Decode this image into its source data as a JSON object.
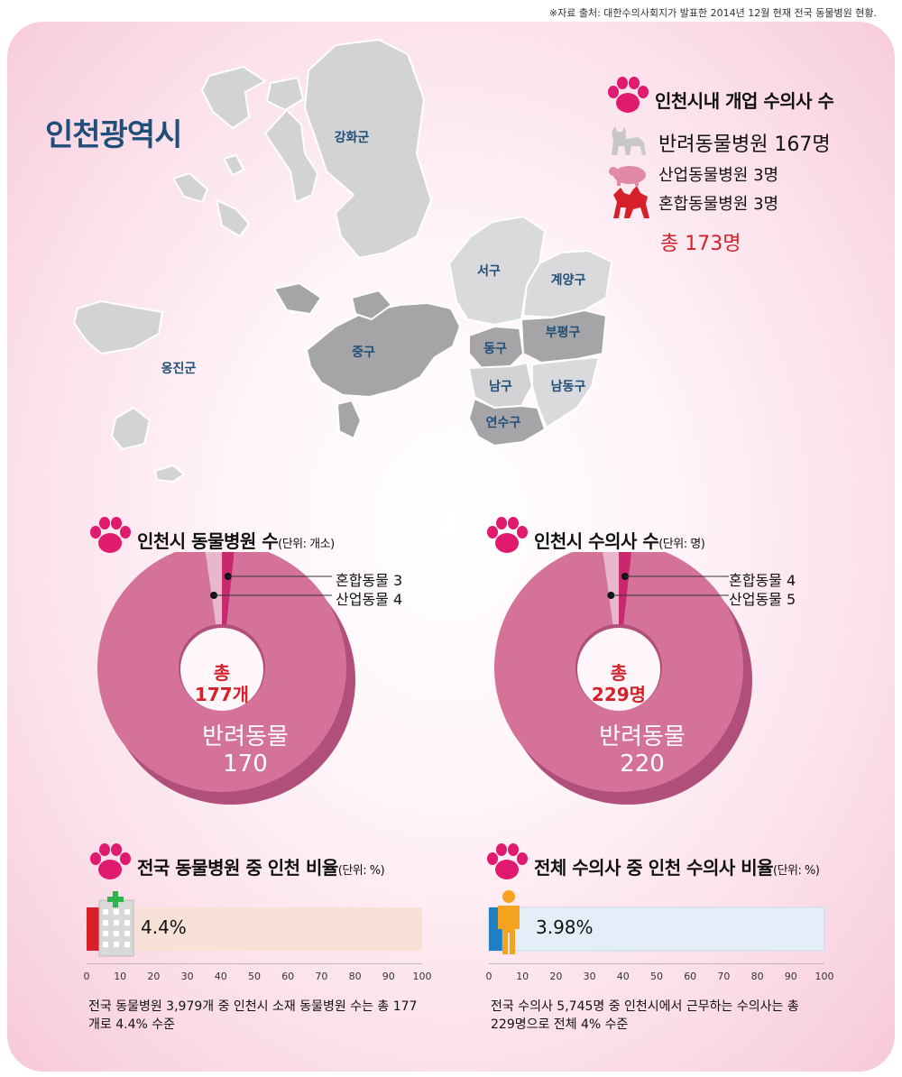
{
  "source_note": "※자료 출처: 대한수의사회지가 발표한 2014년 12월 현재 전국 동물병원 현황.",
  "map": {
    "title": "인천광역시",
    "regions": [
      "강화군",
      "옹진군",
      "서구",
      "계양구",
      "부평구",
      "중구",
      "동구",
      "남구",
      "남동구",
      "연수구"
    ]
  },
  "vets": {
    "heading": "인천시내 개업 수의사 수",
    "lines": [
      "반려동물병원 167명",
      "산업동물병원 3명",
      "혼합동물병원 3명"
    ],
    "total": "총 173명",
    "icons": [
      "cat-icon",
      "pig-icon",
      "dog-and-cat-icon"
    ]
  },
  "colors": {
    "pink_main": "#d4729a",
    "pink_dark": "#b0507a",
    "magenta": "#c8286e",
    "light_pink": "#e8b7c9",
    "accent_red": "#d6212b",
    "navy": "#1f4e79"
  },
  "donut1": {
    "heading": "인천시 동물병원 수",
    "unit": "(단위: 개소)",
    "legend": [
      "혼합동물 3",
      "산업동물 4"
    ],
    "total_top": "총",
    "total_bottom": "177개",
    "main_label": "반려동물",
    "main_value": "170"
  },
  "donut2": {
    "heading": "인천시 수의사 수",
    "unit": "(단위: 명)",
    "legend": [
      "혼합동물 4",
      "산업동물 5"
    ],
    "total_top": "총",
    "total_bottom": "229명",
    "main_label": "반려동물",
    "main_value": "220"
  },
  "bar1": {
    "heading": "전국 동물병원 중 인천 비율",
    "unit": "(단위: %)",
    "value_label": "4.4%",
    "ticks": [
      "0",
      "10",
      "20",
      "30",
      "40",
      "50",
      "60",
      "70",
      "80",
      "90",
      "100"
    ],
    "desc_line1": "전국 동물병원 3,979개 중 인천시 소재 동물병원 수는 총 177",
    "desc_line2": "개로 4.4% 수준"
  },
  "bar2": {
    "heading": "전체 수의사 중 인천 수의사 비율",
    "unit": "(단위: %)",
    "value_label": "3.98%",
    "ticks": [
      "0",
      "10",
      "20",
      "30",
      "40",
      "50",
      "60",
      "70",
      "80",
      "90",
      "100"
    ],
    "desc_line1": "전국 수의사 5,745명 중 인천시에서 근무하는 수의사는 총",
    "desc_line2": "229명으로 전체 4% 수준"
  },
  "chart_data": [
    {
      "type": "pie",
      "title": "인천시 동물병원 수",
      "unit": "개소",
      "categories": [
        "반려동물",
        "혼합동물",
        "산업동물"
      ],
      "values": [
        170,
        3,
        4
      ],
      "total": 177
    },
    {
      "type": "pie",
      "title": "인천시 수의사 수",
      "unit": "명",
      "categories": [
        "반려동물",
        "혼합동물",
        "산업동물"
      ],
      "values": [
        220,
        4,
        5
      ],
      "total": 229
    },
    {
      "type": "bar",
      "title": "전국 동물병원 중 인천 비율",
      "unit": "%",
      "values": [
        4.4
      ],
      "xlim": [
        0,
        100
      ]
    },
    {
      "type": "bar",
      "title": "전체 수의사 중 인천 수의사 비율",
      "unit": "%",
      "values": [
        3.98
      ],
      "xlim": [
        0,
        100
      ]
    }
  ]
}
